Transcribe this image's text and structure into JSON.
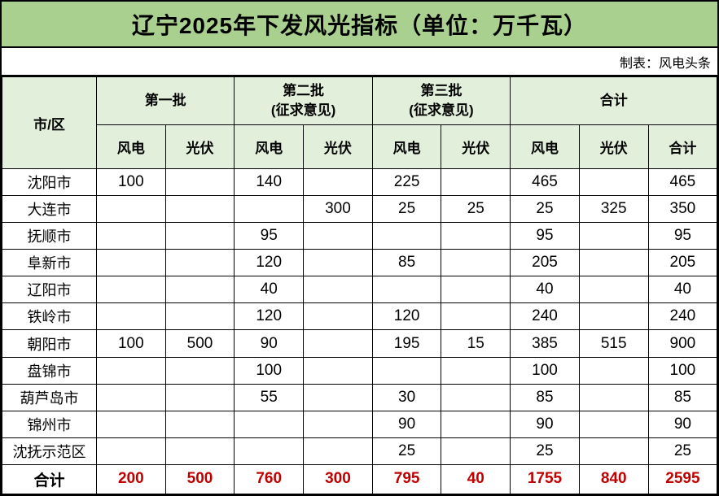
{
  "title": "辽宁2025年下发风光指标（单位：万千瓦）",
  "credit_label": "制表：风电头条",
  "colors": {
    "title_bg": "#a9d08e",
    "header_bg": "#e2efda",
    "total_text": "#c00000",
    "border": "#000000"
  },
  "table": {
    "corner_header": "市/区",
    "column_groups": [
      {
        "label": "第一批",
        "span": 2
      },
      {
        "label": "第二批\n(征求意见)",
        "span": 2
      },
      {
        "label": "第三批\n(征求意见)",
        "span": 2
      },
      {
        "label": "合计",
        "span": 3
      }
    ],
    "sub_headers": [
      "风电",
      "光伏",
      "风电",
      "光伏",
      "风电",
      "光伏",
      "风电",
      "光伏",
      "合计"
    ],
    "rows": [
      {
        "name": "沈阳市",
        "values": [
          "100",
          "",
          "140",
          "",
          "225",
          "",
          "465",
          "",
          "465"
        ]
      },
      {
        "name": "大连市",
        "values": [
          "",
          "",
          "",
          "300",
          "25",
          "25",
          "25",
          "325",
          "350"
        ]
      },
      {
        "name": "抚顺市",
        "values": [
          "",
          "",
          "95",
          "",
          "",
          "",
          "95",
          "",
          "95"
        ]
      },
      {
        "name": "阜新市",
        "values": [
          "",
          "",
          "120",
          "",
          "85",
          "",
          "205",
          "",
          "205"
        ]
      },
      {
        "name": "辽阳市",
        "values": [
          "",
          "",
          "40",
          "",
          "",
          "",
          "40",
          "",
          "40"
        ]
      },
      {
        "name": "铁岭市",
        "values": [
          "",
          "",
          "120",
          "",
          "120",
          "",
          "240",
          "",
          "240"
        ]
      },
      {
        "name": "朝阳市",
        "values": [
          "100",
          "500",
          "90",
          "",
          "195",
          "15",
          "385",
          "515",
          "900"
        ]
      },
      {
        "name": "盘锦市",
        "values": [
          "",
          "",
          "100",
          "",
          "",
          "",
          "100",
          "",
          "100"
        ]
      },
      {
        "name": "葫芦岛市",
        "values": [
          "",
          "",
          "55",
          "",
          "30",
          "",
          "85",
          "",
          "85"
        ]
      },
      {
        "name": "锦州市",
        "values": [
          "",
          "",
          "",
          "",
          "90",
          "",
          "90",
          "",
          "90"
        ]
      },
      {
        "name": "沈抚示范区",
        "values": [
          "",
          "",
          "",
          "",
          "25",
          "",
          "25",
          "",
          "25"
        ]
      }
    ],
    "total_row": {
      "name": "合计",
      "values": [
        "200",
        "500",
        "760",
        "300",
        "795",
        "40",
        "1755",
        "840",
        "2595"
      ]
    }
  }
}
